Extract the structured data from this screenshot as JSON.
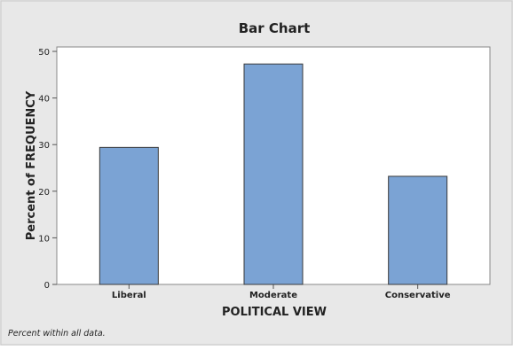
{
  "chart_data": {
    "type": "bar",
    "title": "Bar Chart",
    "xlabel": "POLITICAL VIEW",
    "ylabel": "Percent of FREQUENCY",
    "categories": [
      "Liberal",
      "Moderate",
      "Conservative"
    ],
    "values": [
      29.4,
      47.3,
      23.2
    ],
    "ylim": [
      0,
      50
    ],
    "yticks": [
      0,
      10,
      20,
      30,
      40,
      50
    ],
    "grid": false,
    "footnote": "Percent within all data.",
    "colors": {
      "bar_fill": "#7ba3d4",
      "bar_stroke": "#3a3a3a",
      "background": "#e8e8e8",
      "plot_background": "#ffffff",
      "axis": "#555555"
    }
  }
}
